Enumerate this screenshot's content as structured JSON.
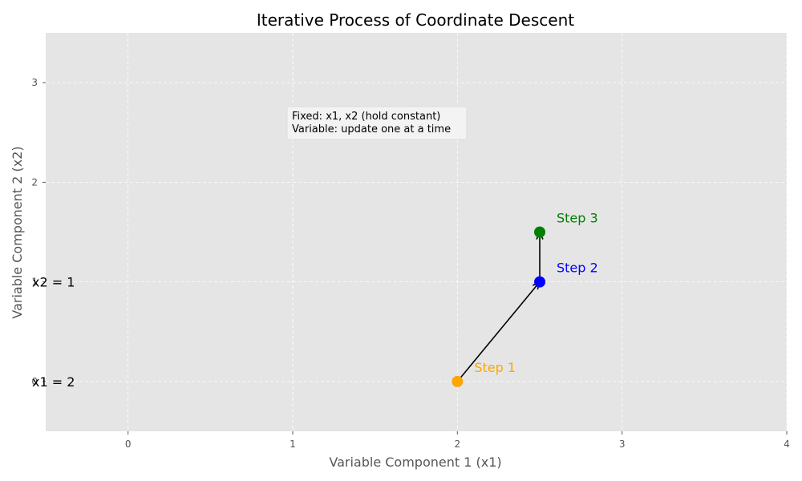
{
  "chart_data": {
    "type": "scatter",
    "title": "Iterative Process of Coordinate Descent",
    "xlabel": "Variable Component 1 (x1)",
    "ylabel": "Variable Component 2 (x2)",
    "xlim": [
      -0.5,
      4
    ],
    "ylim": [
      -0.5,
      3.5
    ],
    "xticks": [
      "0",
      "1",
      "2",
      "3",
      "4"
    ],
    "yticks": [
      "0",
      "1",
      "2",
      "3"
    ],
    "grid": true,
    "points": [
      {
        "x": 2.0,
        "y": 0.0,
        "label": "Step 1",
        "color": "#ffa500"
      },
      {
        "x": 2.5,
        "y": 1.0,
        "label": "Step 2",
        "color": "#0000ff"
      },
      {
        "x": 2.5,
        "y": 1.5,
        "label": "Step 3",
        "color": "#008000"
      }
    ],
    "arrows": [
      {
        "from": [
          2.0,
          0.0
        ],
        "to": [
          2.5,
          1.0
        ]
      },
      {
        "from": [
          2.5,
          1.0
        ],
        "to": [
          2.5,
          1.5
        ]
      }
    ],
    "axis_annotations": [
      {
        "text": "x1 = 2",
        "y": 0
      },
      {
        "text": "x2 = 1",
        "y": 1
      }
    ],
    "annotation_box": {
      "lines": [
        "Fixed: x1, x2 (hold constant)",
        "Variable: update one at a time"
      ]
    },
    "colors": {
      "plot_background": "#e5e5e5",
      "grid": "#ffffff",
      "tick_text": "#555555",
      "arrow": "#000000"
    }
  }
}
